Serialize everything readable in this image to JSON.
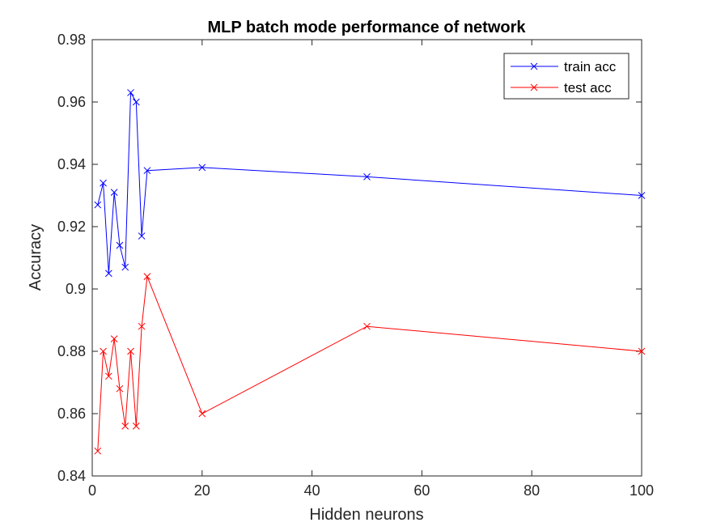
{
  "chart_data": {
    "type": "line",
    "title": "MLP batch mode performance of network",
    "xlabel": "Hidden neurons",
    "ylabel": "Accuracy",
    "xlim": [
      0,
      100
    ],
    "ylim": [
      0.84,
      0.98
    ],
    "xticks": [
      0,
      20,
      40,
      60,
      80,
      100
    ],
    "xtick_labels": [
      "0",
      "20",
      "40",
      "60",
      "80",
      "100"
    ],
    "yticks": [
      0.84,
      0.86,
      0.88,
      0.9,
      0.92,
      0.94,
      0.96,
      0.98
    ],
    "ytick_labels": [
      "0.84",
      "0.86",
      "0.88",
      "0.9",
      "0.92",
      "0.94",
      "0.96",
      "0.98"
    ],
    "grid": false,
    "legend_position": "top-right",
    "x": [
      1,
      2,
      3,
      4,
      5,
      6,
      7,
      8,
      9,
      10,
      20,
      50,
      100
    ],
    "series": [
      {
        "name": "train acc",
        "color": "#0000ff",
        "marker": "x",
        "values": [
          0.927,
          0.934,
          0.905,
          0.931,
          0.914,
          0.907,
          0.963,
          0.96,
          0.917,
          0.938,
          0.939,
          0.936,
          0.93
        ]
      },
      {
        "name": "test acc",
        "color": "#ff0000",
        "marker": "x",
        "values": [
          0.848,
          0.88,
          0.872,
          0.884,
          0.868,
          0.856,
          0.88,
          0.856,
          0.888,
          0.904,
          0.86,
          0.888,
          0.88
        ]
      }
    ]
  }
}
